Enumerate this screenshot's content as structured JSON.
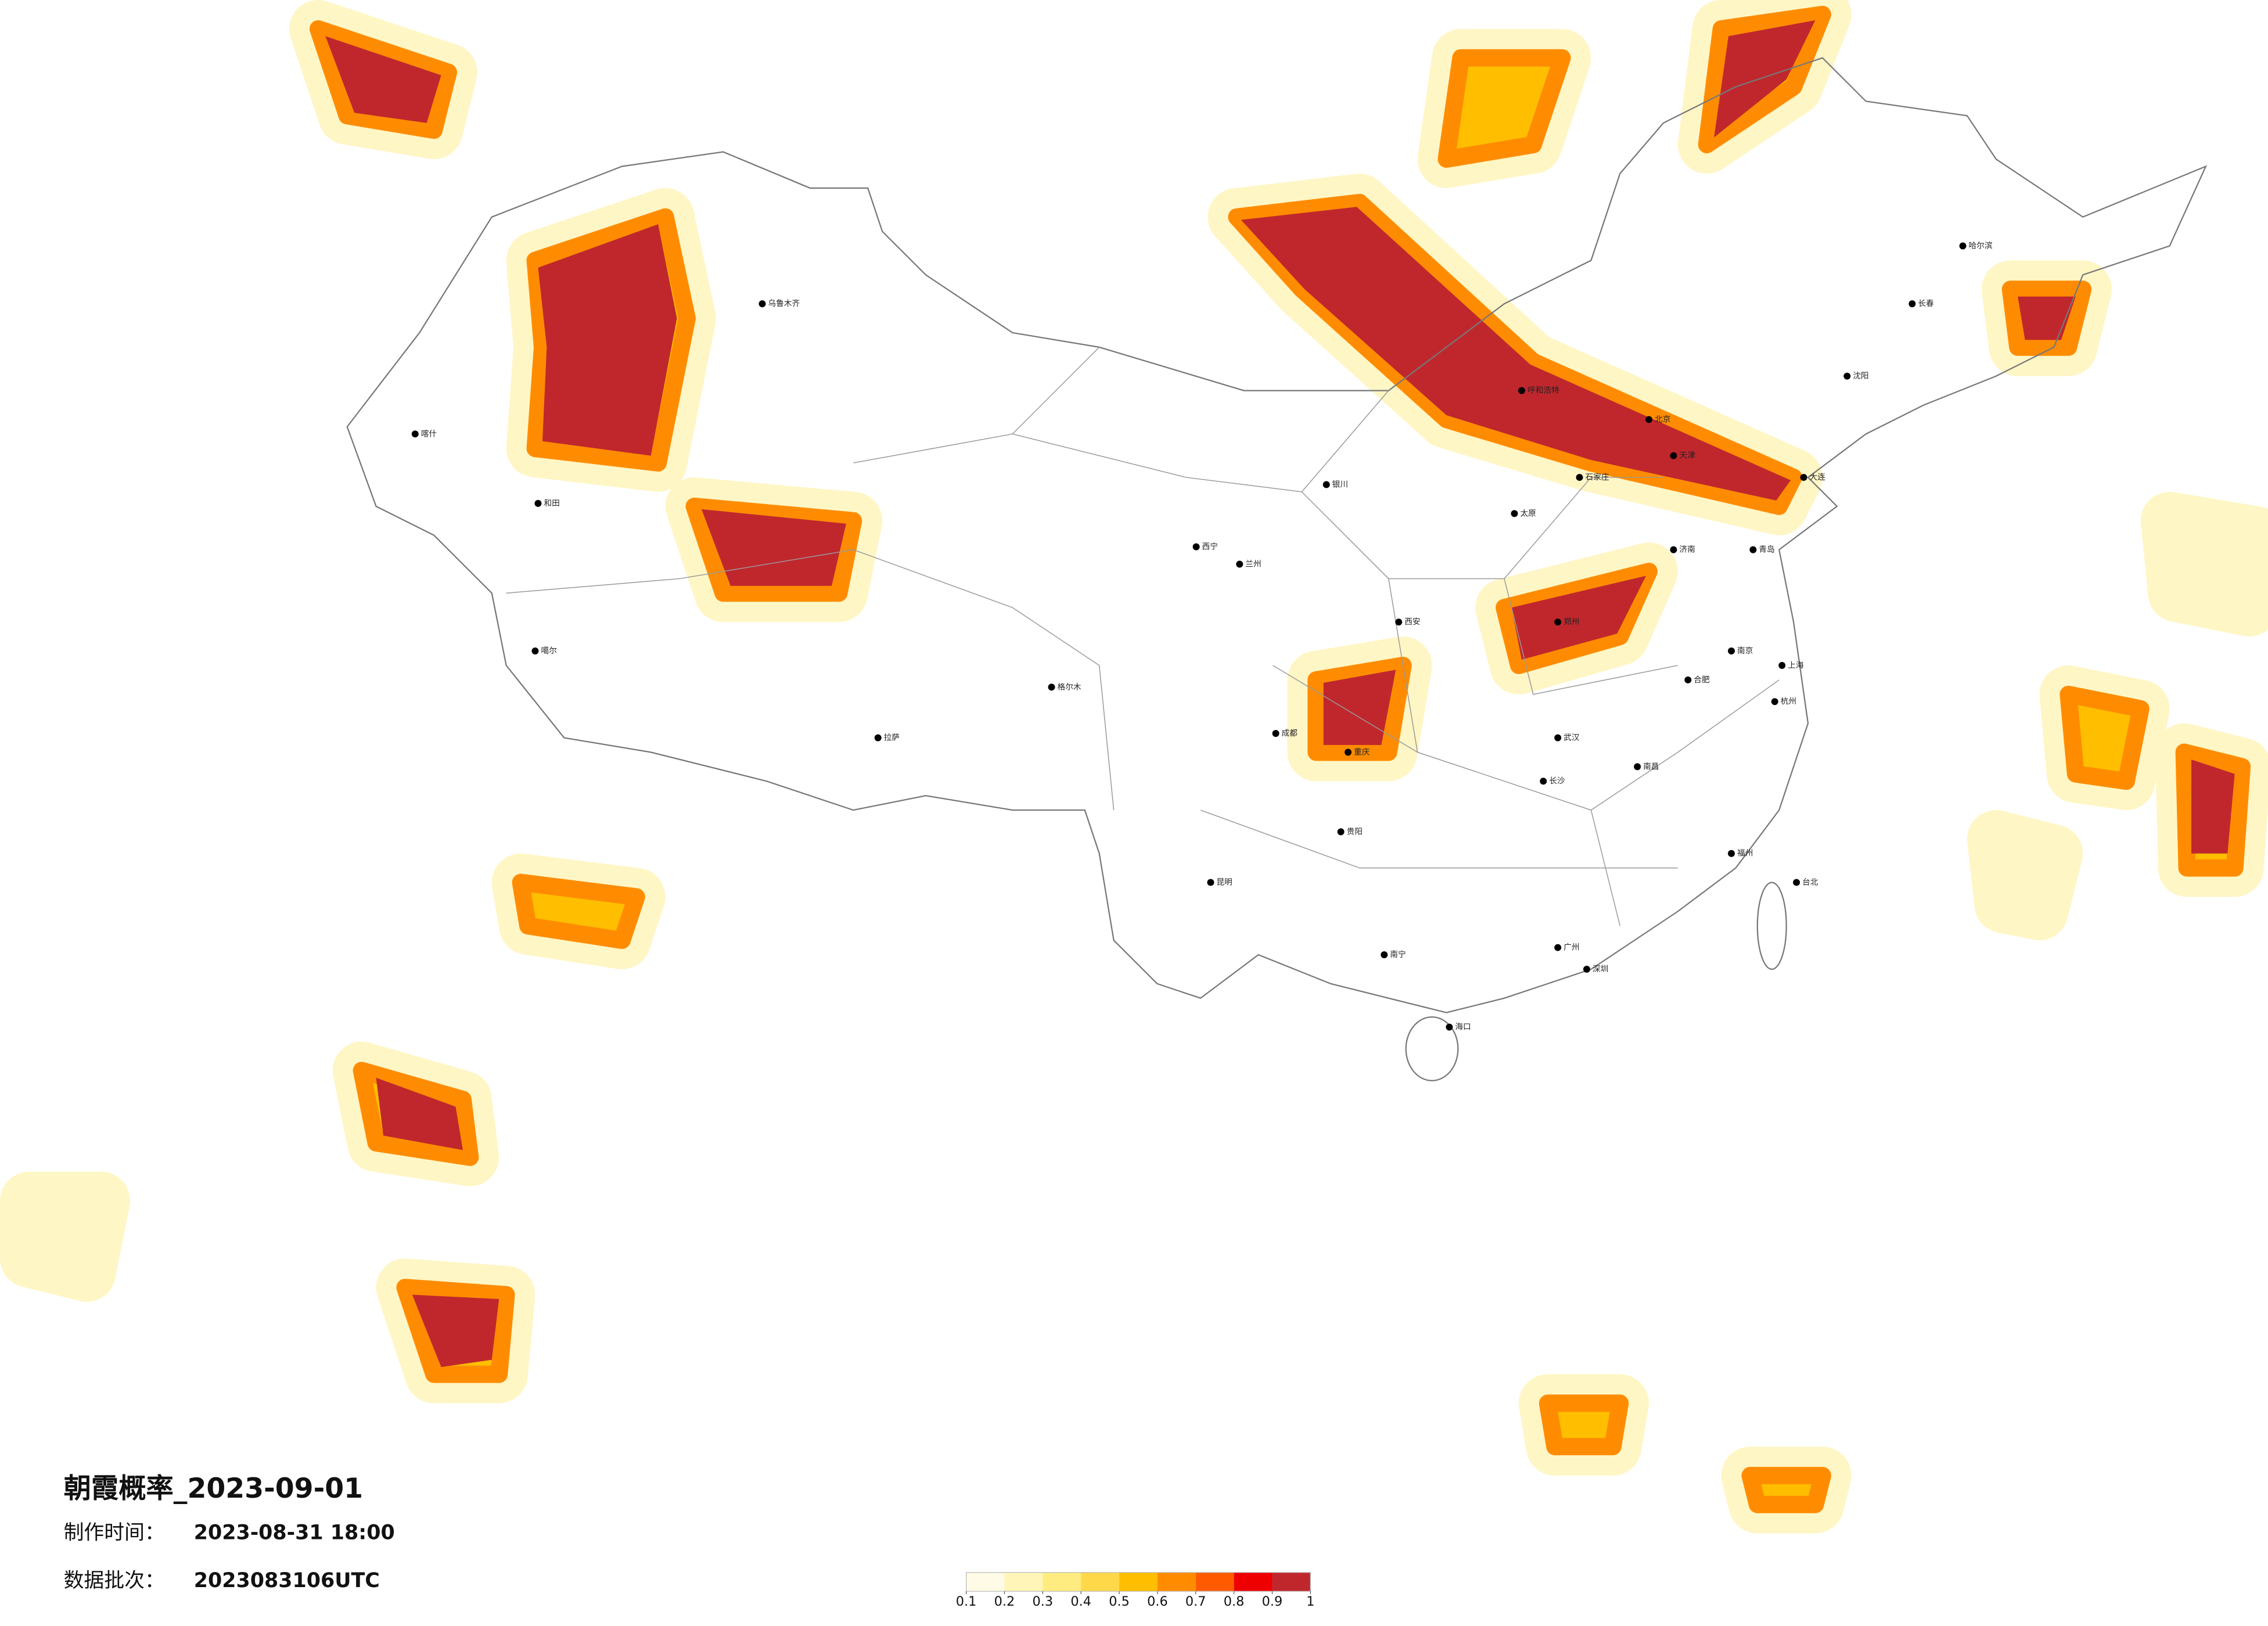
{
  "header": {
    "title": "朝霞概率_2023-09-01",
    "made_label": "制作时间：",
    "made_value": "2023-08-31 18:00",
    "batch_label": "数据批次：",
    "batch_value": "2023083106UTC"
  },
  "colorbar": {
    "ticks": [
      0.1,
      0.2,
      0.3,
      0.4,
      0.5,
      0.6,
      0.7,
      0.8,
      0.9,
      1
    ],
    "colors": [
      "#fffbe6",
      "#fff5b8",
      "#ffec80",
      "#ffd84a",
      "#ffbf00",
      "#ff8c00",
      "#ff5a00",
      "#ee0000",
      "#c0272d"
    ]
  },
  "cities": [
    "北京",
    "天津",
    "上海",
    "广州",
    "深圳",
    "重庆",
    "成都",
    "武汉",
    "西安",
    "兰州",
    "西宁",
    "拉萨",
    "乌鲁木齐",
    "哈尔滨",
    "长春",
    "沈阳",
    "呼和浩特",
    "银川",
    "郑州",
    "济南",
    "南京",
    "杭州",
    "福州",
    "南昌",
    "长沙",
    "贵阳",
    "昆明",
    "南宁",
    "海口",
    "台北",
    "太原",
    "石家庄",
    "合肥",
    "喀什",
    "和田",
    "噶尔",
    "格尔木",
    "大连",
    "青岛"
  ]
}
